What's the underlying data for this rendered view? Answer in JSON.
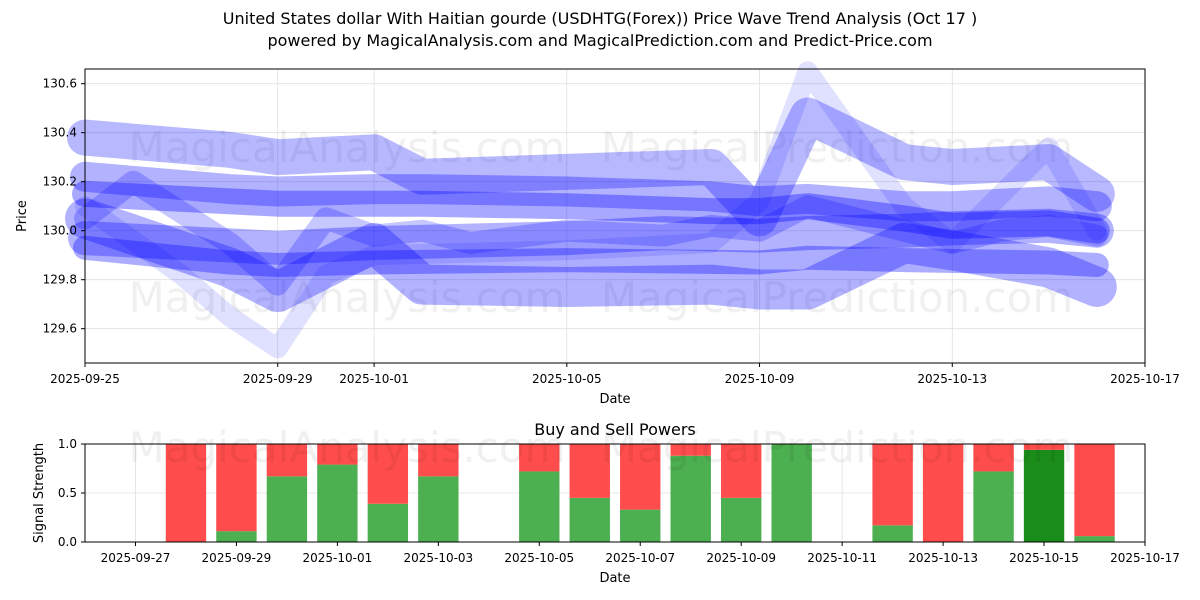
{
  "header": {
    "title": "United States dollar With Haitian gourde (USDHTG(Forex)) Price Wave Trend Analysis (Oct 17 )",
    "subtitle": "powered by MagicalAnalysis.com and MagicalPrediction.com and Predict-Price.com"
  },
  "watermarks": [
    "MagicalAnalysis.com",
    "MagicalPrediction.com"
  ],
  "colors": {
    "wave": "#0000ff",
    "buy": "#4caf50",
    "sell": "#ff4c4c",
    "buy_strong": "#1a8c1a",
    "grid": "#e0e0e0"
  },
  "chart_data": [
    {
      "type": "line",
      "title": "",
      "xlabel": "Date",
      "ylabel": "Price",
      "xlim": [
        "2025-09-25",
        "2025-10-17"
      ],
      "ylim": [
        129.46,
        130.66
      ],
      "x_ticks": [
        "2025-09-25",
        "2025-09-29",
        "2025-10-01",
        "2025-10-05",
        "2025-10-09",
        "2025-10-13",
        "2025-10-17"
      ],
      "y_ticks": [
        129.6,
        129.8,
        130.0,
        130.2,
        130.4,
        130.6
      ],
      "grid": true,
      "series": [
        {
          "x": [
            "2025-09-25",
            "2025-09-28",
            "2025-09-29",
            "2025-10-01",
            "2025-10-02",
            "2025-10-05",
            "2025-10-08",
            "2025-10-09",
            "2025-10-10",
            "2025-10-12",
            "2025-10-13",
            "2025-10-15",
            "2025-10-16"
          ],
          "y": [
            130.38,
            130.33,
            130.3,
            130.32,
            130.22,
            130.24,
            130.26,
            130.05,
            130.47,
            130.28,
            130.26,
            130.28,
            130.15
          ]
        },
        {
          "x": [
            "2025-09-25",
            "2025-09-28",
            "2025-09-29",
            "2025-10-01",
            "2025-10-02",
            "2025-10-05",
            "2025-10-08",
            "2025-10-09",
            "2025-10-10",
            "2025-10-12",
            "2025-10-13",
            "2025-10-15",
            "2025-10-16"
          ],
          "y": [
            130.22,
            130.17,
            130.16,
            130.17,
            130.17,
            130.16,
            130.14,
            130.12,
            130.13,
            130.1,
            130.1,
            130.12,
            130.1
          ]
        },
        {
          "x": [
            "2025-09-25",
            "2025-09-28",
            "2025-09-29",
            "2025-10-01",
            "2025-10-02",
            "2025-10-05",
            "2025-10-08",
            "2025-10-09",
            "2025-10-10",
            "2025-10-12",
            "2025-10-13",
            "2025-10-15",
            "2025-10-16"
          ],
          "y": [
            130.15,
            130.12,
            130.11,
            130.11,
            130.11,
            130.1,
            130.08,
            130.08,
            130.1,
            130.05,
            130.02,
            130.03,
            130.0
          ]
        },
        {
          "x": [
            "2025-09-25",
            "2025-09-26",
            "2025-09-28",
            "2025-09-29",
            "2025-09-30",
            "2025-10-01",
            "2025-10-02",
            "2025-10-03",
            "2025-10-05",
            "2025-10-07",
            "2025-10-08",
            "2025-10-09",
            "2025-10-10",
            "2025-10-11",
            "2025-10-12",
            "2025-10-13",
            "2025-10-14",
            "2025-10-15",
            "2025-10-16"
          ],
          "y": [
            130.05,
            130.2,
            129.95,
            129.78,
            130.05,
            129.98,
            130.0,
            129.95,
            130.0,
            129.98,
            130.02,
            130.0,
            130.1,
            130.05,
            130.0,
            129.95,
            130.0,
            130.02,
            129.98
          ]
        },
        {
          "x": [
            "2025-09-25",
            "2025-09-28",
            "2025-09-29",
            "2025-10-01",
            "2025-10-05",
            "2025-10-07",
            "2025-10-09",
            "2025-10-10",
            "2025-10-12",
            "2025-10-13",
            "2025-10-15",
            "2025-10-16"
          ],
          "y": [
            129.97,
            129.94,
            129.93,
            129.95,
            129.97,
            129.99,
            129.98,
            129.99,
            130.0,
            130.01,
            130.02,
            130.0
          ]
        },
        {
          "x": [
            "2025-09-25",
            "2025-09-28",
            "2025-09-29",
            "2025-10-01",
            "2025-10-05",
            "2025-10-09",
            "2025-10-10",
            "2025-10-12",
            "2025-10-15",
            "2025-10-16"
          ],
          "y": [
            129.93,
            129.87,
            129.86,
            129.87,
            129.88,
            129.87,
            129.89,
            129.88,
            129.87,
            129.86
          ]
        },
        {
          "x": [
            "2025-09-25",
            "2025-09-28",
            "2025-09-29",
            "2025-10-01",
            "2025-10-02",
            "2025-10-05",
            "2025-10-08",
            "2025-10-09",
            "2025-10-10",
            "2025-10-12",
            "2025-10-13",
            "2025-10-15",
            "2025-10-16"
          ],
          "y": [
            130.05,
            129.85,
            129.75,
            129.95,
            129.78,
            129.77,
            129.78,
            129.76,
            129.76,
            129.95,
            129.92,
            129.85,
            129.77
          ]
        },
        {
          "x": [
            "2025-09-25",
            "2025-09-27",
            "2025-09-28",
            "2025-09-29",
            "2025-09-30",
            "2025-10-01",
            "2025-10-05",
            "2025-10-08",
            "2025-10-09",
            "2025-10-10",
            "2025-10-12",
            "2025-10-13",
            "2025-10-15",
            "2025-10-16"
          ],
          "y": [
            130.1,
            129.82,
            129.65,
            129.52,
            129.82,
            129.9,
            129.92,
            129.95,
            130.12,
            130.65,
            130.1,
            129.95,
            130.34,
            130.0
          ]
        }
      ]
    },
    {
      "type": "bar",
      "title": "Buy and Sell Powers",
      "xlabel": "Date",
      "ylabel": "Signal Strength",
      "xlim": [
        "2025-09-26",
        "2025-10-17"
      ],
      "ylim": [
        0,
        1.0
      ],
      "x_ticks": [
        "2025-09-27",
        "2025-09-29",
        "2025-10-01",
        "2025-10-03",
        "2025-10-05",
        "2025-10-07",
        "2025-10-09",
        "2025-10-11",
        "2025-10-13",
        "2025-10-15",
        "2025-10-17"
      ],
      "y_ticks": [
        0.0,
        0.5,
        1.0
      ],
      "grid": true,
      "categories": [
        "2025-09-28",
        "2025-09-29",
        "2025-09-30",
        "2025-10-01",
        "2025-10-02",
        "2025-10-03",
        "2025-10-05",
        "2025-10-06",
        "2025-10-07",
        "2025-10-08",
        "2025-10-09",
        "2025-10-10",
        "2025-10-12",
        "2025-10-13",
        "2025-10-14",
        "2025-10-15",
        "2025-10-16"
      ],
      "series": [
        {
          "values": [
            0.0,
            0.11,
            0.67,
            0.79,
            0.39,
            0.67,
            0.72,
            0.45,
            0.33,
            0.88,
            0.45,
            1.0,
            0.17,
            0.0,
            0.72,
            0.94,
            0.06
          ]
        },
        {
          "values": [
            1.0,
            0.89,
            0.33,
            0.21,
            0.61,
            0.33,
            0.28,
            0.55,
            0.67,
            0.12,
            0.55,
            0.0,
            0.83,
            1.0,
            0.28,
            0.06,
            0.94
          ]
        }
      ]
    }
  ]
}
